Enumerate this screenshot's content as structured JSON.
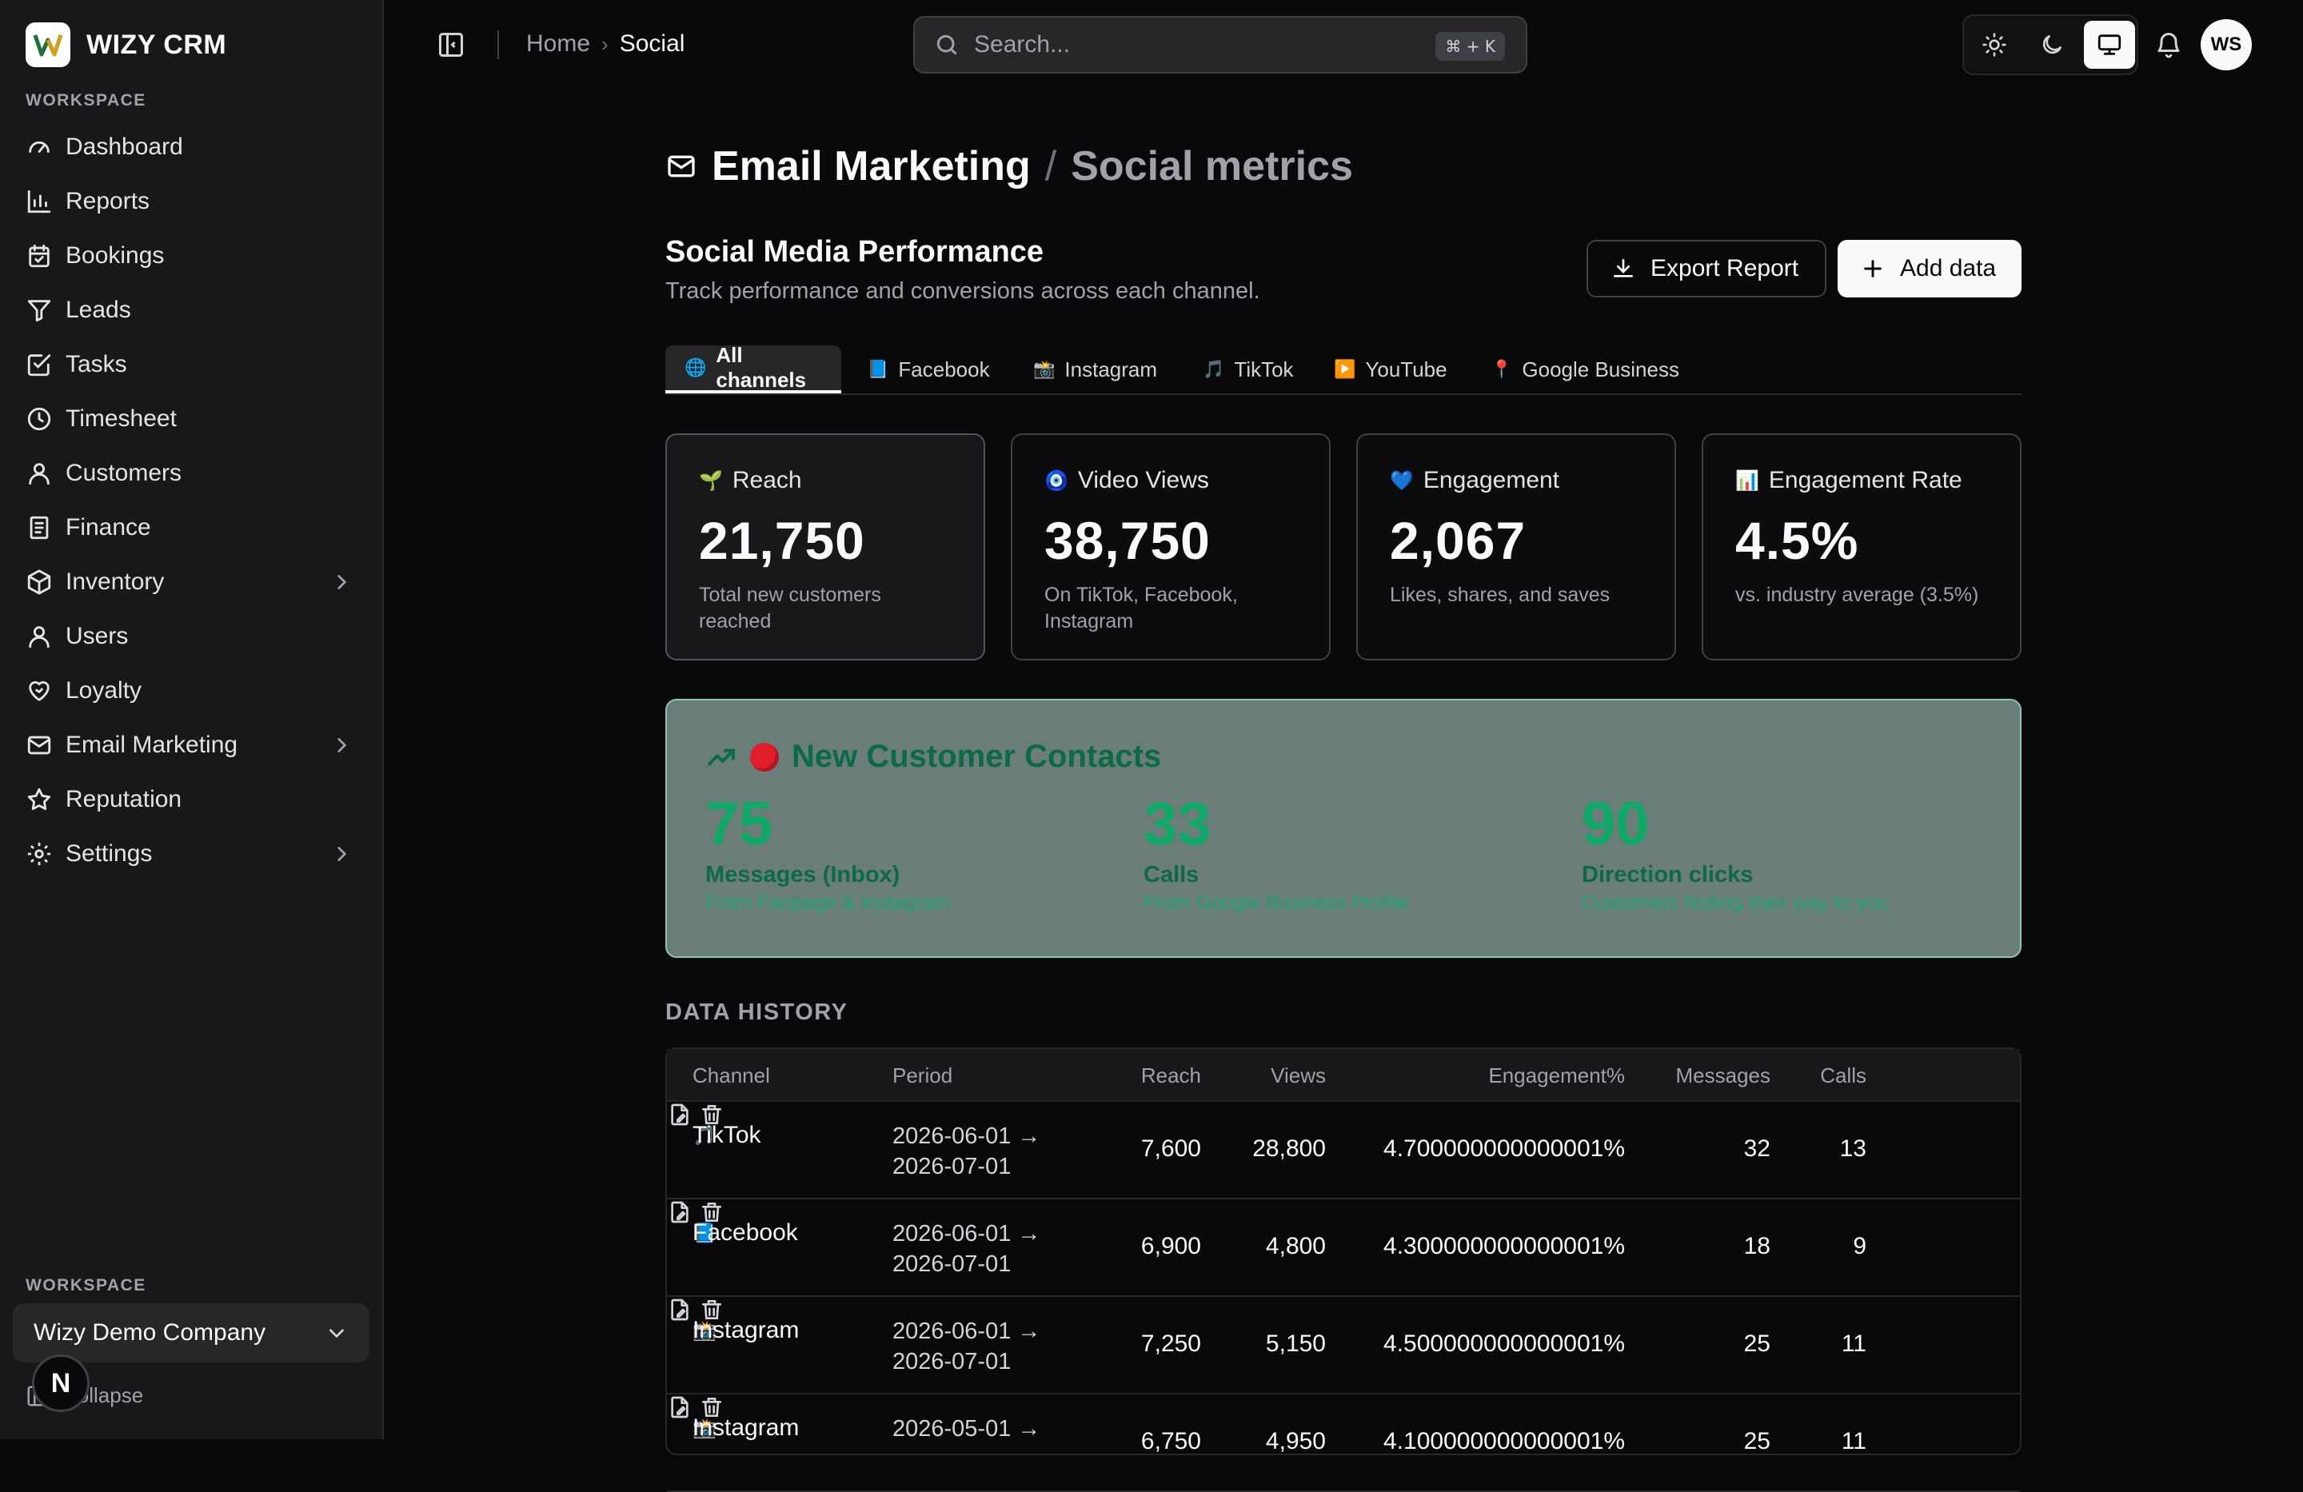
{
  "app": {
    "name": "WIZY CRM",
    "logo_letter": "W"
  },
  "sidebar": {
    "section_label": "WORKSPACE",
    "items": [
      {
        "label": "Dashboard",
        "icon": "gauge-icon"
      },
      {
        "label": "Reports",
        "icon": "bar-chart-icon"
      },
      {
        "label": "Bookings",
        "icon": "calendar-check-icon"
      },
      {
        "label": "Leads",
        "icon": "funnel-icon"
      },
      {
        "label": "Tasks",
        "icon": "square-check-icon"
      },
      {
        "label": "Timesheet",
        "icon": "clock-icon"
      },
      {
        "label": "Customers",
        "icon": "user-icon"
      },
      {
        "label": "Finance",
        "icon": "receipt-icon"
      },
      {
        "label": "Inventory",
        "icon": "package-icon",
        "has_children": true
      },
      {
        "label": "Users",
        "icon": "user-icon"
      },
      {
        "label": "Loyalty",
        "icon": "heart-handshake-icon"
      },
      {
        "label": "Email Marketing",
        "icon": "mail-icon",
        "has_children": true
      },
      {
        "label": "Reputation",
        "icon": "star-icon"
      },
      {
        "label": "Settings",
        "icon": "gear-icon",
        "has_children": true
      }
    ],
    "footer_label": "WORKSPACE",
    "company": "Wizy Demo Company",
    "collapse_label": "Collapse",
    "badge": "N"
  },
  "topbar": {
    "breadcrumb": {
      "home": "Home",
      "current": "Social"
    },
    "search": {
      "placeholder": "Search...",
      "shortcut": "⌘ + K"
    },
    "theme": {
      "active": "system"
    },
    "avatar": "WS"
  },
  "page": {
    "title": "Email Marketing",
    "subtitle": "Social metrics",
    "section_title": "Social Media Performance",
    "section_sub": "Track performance and conversions across each channel.",
    "export_label": "Export Report",
    "add_label": "Add data"
  },
  "tabs": [
    {
      "label": "All channels",
      "emoji": "🌐",
      "active": true
    },
    {
      "label": "Facebook",
      "emoji": "📘"
    },
    {
      "label": "Instagram",
      "emoji": "📸"
    },
    {
      "label": "TikTok",
      "emoji": "🎵"
    },
    {
      "label": "YouTube",
      "emoji": "▶️"
    },
    {
      "label": "Google Business",
      "emoji": "📍"
    }
  ],
  "cards": [
    {
      "emoji": "🌱",
      "label": "Reach",
      "value": "21,750",
      "desc": "Total new customers reached"
    },
    {
      "emoji": "🧿",
      "label": "Video Views",
      "value": "38,750",
      "desc": "On TikTok, Facebook, Instagram"
    },
    {
      "emoji": "💙",
      "label": "Engagement",
      "value": "2,067",
      "desc": "Likes, shares, and saves"
    },
    {
      "emoji": "📊",
      "label": "Engagement Rate",
      "value": "4.5%",
      "desc": "vs. industry average (3.5%)"
    }
  ],
  "contacts": {
    "title": "New Customer Contacts",
    "metrics": [
      {
        "value": "75",
        "label": "Messages (Inbox)",
        "sub": "From Fanpage & Instagram"
      },
      {
        "value": "33",
        "label": "Calls",
        "sub": "From Google Business Profile"
      },
      {
        "value": "90",
        "label": "Direction clicks",
        "sub": "Customers finding their way to you"
      }
    ]
  },
  "history": {
    "label": "DATA HISTORY",
    "columns": [
      "Channel",
      "Period",
      "Reach",
      "Views",
      "Engagement%",
      "Messages",
      "Calls"
    ],
    "rows": [
      {
        "emoji": "🎵",
        "channel": "TikTok",
        "period_start": "2026-06-01 →",
        "period_end": "2026-07-01",
        "reach": "7,600",
        "views": "28,800",
        "engagement": "4.700000000000001%",
        "messages": "32",
        "calls": "13"
      },
      {
        "emoji": "📘",
        "channel": "Facebook",
        "period_start": "2026-06-01 →",
        "period_end": "2026-07-01",
        "reach": "6,900",
        "views": "4,800",
        "engagement": "4.300000000000001%",
        "messages": "18",
        "calls": "9"
      },
      {
        "emoji": "📸",
        "channel": "Instagram",
        "period_start": "2026-06-01 →",
        "period_end": "2026-07-01",
        "reach": "7,250",
        "views": "5,150",
        "engagement": "4.500000000000001%",
        "messages": "25",
        "calls": "11"
      },
      {
        "emoji": "📸",
        "channel": "Instagram",
        "period_start": "2026-05-01 →",
        "period_end": "",
        "reach": "6,750",
        "views": "4,950",
        "engagement": "4.100000000000001%",
        "messages": "25",
        "calls": "11"
      }
    ]
  },
  "colors": {
    "accent_green": "#0fa968",
    "contact_bg": "#6b7d78",
    "contact_border": "#86c9ad",
    "dot_red": "#e11d2a"
  }
}
